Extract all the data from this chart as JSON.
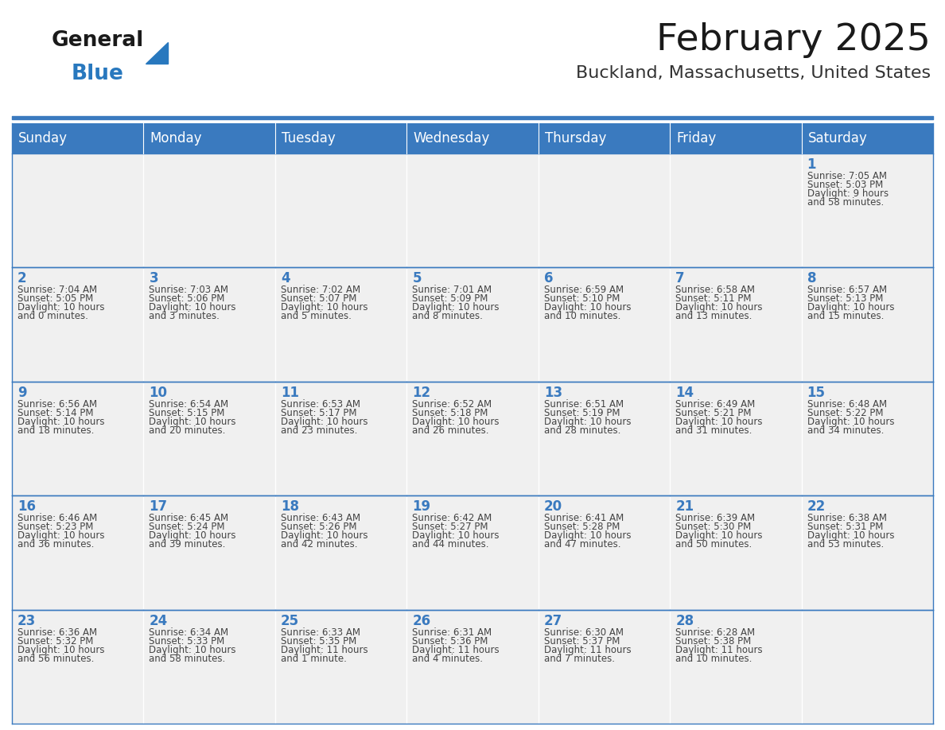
{
  "title": "February 2025",
  "subtitle": "Buckland, Massachusetts, United States",
  "header_bg_color": "#3a7abf",
  "header_text_color": "#ffffff",
  "cell_bg_color": "#f0f0f0",
  "cell_text_color": "#444444",
  "day_number_color": "#3a7abf",
  "border_color": "#3a7abf",
  "white": "#ffffff",
  "days_of_week": [
    "Sunday",
    "Monday",
    "Tuesday",
    "Wednesday",
    "Thursday",
    "Friday",
    "Saturday"
  ],
  "weeks": [
    [
      {
        "day": "",
        "info": ""
      },
      {
        "day": "",
        "info": ""
      },
      {
        "day": "",
        "info": ""
      },
      {
        "day": "",
        "info": ""
      },
      {
        "day": "",
        "info": ""
      },
      {
        "day": "",
        "info": ""
      },
      {
        "day": "1",
        "info": "Sunrise: 7:05 AM\nSunset: 5:03 PM\nDaylight: 9 hours\nand 58 minutes."
      }
    ],
    [
      {
        "day": "2",
        "info": "Sunrise: 7:04 AM\nSunset: 5:05 PM\nDaylight: 10 hours\nand 0 minutes."
      },
      {
        "day": "3",
        "info": "Sunrise: 7:03 AM\nSunset: 5:06 PM\nDaylight: 10 hours\nand 3 minutes."
      },
      {
        "day": "4",
        "info": "Sunrise: 7:02 AM\nSunset: 5:07 PM\nDaylight: 10 hours\nand 5 minutes."
      },
      {
        "day": "5",
        "info": "Sunrise: 7:01 AM\nSunset: 5:09 PM\nDaylight: 10 hours\nand 8 minutes."
      },
      {
        "day": "6",
        "info": "Sunrise: 6:59 AM\nSunset: 5:10 PM\nDaylight: 10 hours\nand 10 minutes."
      },
      {
        "day": "7",
        "info": "Sunrise: 6:58 AM\nSunset: 5:11 PM\nDaylight: 10 hours\nand 13 minutes."
      },
      {
        "day": "8",
        "info": "Sunrise: 6:57 AM\nSunset: 5:13 PM\nDaylight: 10 hours\nand 15 minutes."
      }
    ],
    [
      {
        "day": "9",
        "info": "Sunrise: 6:56 AM\nSunset: 5:14 PM\nDaylight: 10 hours\nand 18 minutes."
      },
      {
        "day": "10",
        "info": "Sunrise: 6:54 AM\nSunset: 5:15 PM\nDaylight: 10 hours\nand 20 minutes."
      },
      {
        "day": "11",
        "info": "Sunrise: 6:53 AM\nSunset: 5:17 PM\nDaylight: 10 hours\nand 23 minutes."
      },
      {
        "day": "12",
        "info": "Sunrise: 6:52 AM\nSunset: 5:18 PM\nDaylight: 10 hours\nand 26 minutes."
      },
      {
        "day": "13",
        "info": "Sunrise: 6:51 AM\nSunset: 5:19 PM\nDaylight: 10 hours\nand 28 minutes."
      },
      {
        "day": "14",
        "info": "Sunrise: 6:49 AM\nSunset: 5:21 PM\nDaylight: 10 hours\nand 31 minutes."
      },
      {
        "day": "15",
        "info": "Sunrise: 6:48 AM\nSunset: 5:22 PM\nDaylight: 10 hours\nand 34 minutes."
      }
    ],
    [
      {
        "day": "16",
        "info": "Sunrise: 6:46 AM\nSunset: 5:23 PM\nDaylight: 10 hours\nand 36 minutes."
      },
      {
        "day": "17",
        "info": "Sunrise: 6:45 AM\nSunset: 5:24 PM\nDaylight: 10 hours\nand 39 minutes."
      },
      {
        "day": "18",
        "info": "Sunrise: 6:43 AM\nSunset: 5:26 PM\nDaylight: 10 hours\nand 42 minutes."
      },
      {
        "day": "19",
        "info": "Sunrise: 6:42 AM\nSunset: 5:27 PM\nDaylight: 10 hours\nand 44 minutes."
      },
      {
        "day": "20",
        "info": "Sunrise: 6:41 AM\nSunset: 5:28 PM\nDaylight: 10 hours\nand 47 minutes."
      },
      {
        "day": "21",
        "info": "Sunrise: 6:39 AM\nSunset: 5:30 PM\nDaylight: 10 hours\nand 50 minutes."
      },
      {
        "day": "22",
        "info": "Sunrise: 6:38 AM\nSunset: 5:31 PM\nDaylight: 10 hours\nand 53 minutes."
      }
    ],
    [
      {
        "day": "23",
        "info": "Sunrise: 6:36 AM\nSunset: 5:32 PM\nDaylight: 10 hours\nand 56 minutes."
      },
      {
        "day": "24",
        "info": "Sunrise: 6:34 AM\nSunset: 5:33 PM\nDaylight: 10 hours\nand 58 minutes."
      },
      {
        "day": "25",
        "info": "Sunrise: 6:33 AM\nSunset: 5:35 PM\nDaylight: 11 hours\nand 1 minute."
      },
      {
        "day": "26",
        "info": "Sunrise: 6:31 AM\nSunset: 5:36 PM\nDaylight: 11 hours\nand 4 minutes."
      },
      {
        "day": "27",
        "info": "Sunrise: 6:30 AM\nSunset: 5:37 PM\nDaylight: 11 hours\nand 7 minutes."
      },
      {
        "day": "28",
        "info": "Sunrise: 6:28 AM\nSunset: 5:38 PM\nDaylight: 11 hours\nand 10 minutes."
      },
      {
        "day": "",
        "info": ""
      }
    ]
  ],
  "logo_text_general": "General",
  "logo_text_blue": "Blue",
  "title_fontsize": 34,
  "subtitle_fontsize": 16,
  "header_fontsize": 12,
  "day_number_fontsize": 12,
  "cell_text_fontsize": 8.5
}
